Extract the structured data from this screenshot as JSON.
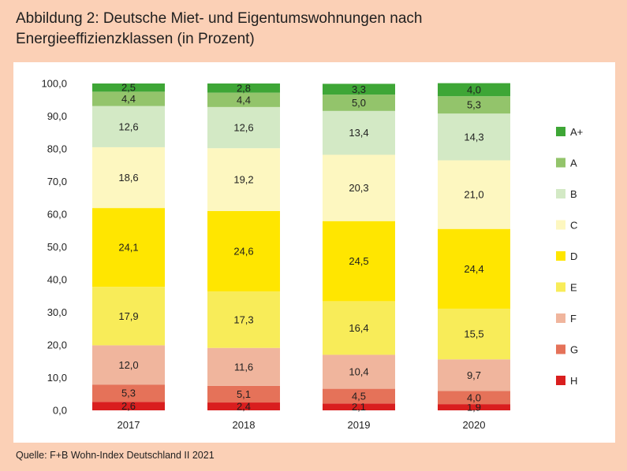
{
  "title": {
    "line1": "Abbildung 2: Deutsche Miet- und Eigentumswohnungen nach",
    "line2": "Energieeffizienzklassen (in Prozent)"
  },
  "source": "Quelle: F+B Wohn-Index Deutschland II 2021",
  "chart_data": {
    "type": "bar",
    "stacked": true,
    "categories": [
      "2017",
      "2018",
      "2019",
      "2020"
    ],
    "series": [
      {
        "name": "H",
        "color": "#d91e1e",
        "values": [
          2.6,
          2.4,
          2.1,
          1.9
        ]
      },
      {
        "name": "G",
        "color": "#e57259",
        "values": [
          5.3,
          5.1,
          4.5,
          4.0
        ]
      },
      {
        "name": "F",
        "color": "#f0b59d",
        "values": [
          12.0,
          11.6,
          10.4,
          9.7
        ]
      },
      {
        "name": "E",
        "color": "#f8ec59",
        "values": [
          17.9,
          17.3,
          16.4,
          15.5
        ]
      },
      {
        "name": "D",
        "color": "#ffe600",
        "values": [
          24.1,
          24.6,
          24.5,
          24.4
        ]
      },
      {
        "name": "C",
        "color": "#fdf7c0",
        "values": [
          18.6,
          19.2,
          20.3,
          21.0
        ]
      },
      {
        "name": "B",
        "color": "#d3e9c5",
        "values": [
          12.6,
          12.6,
          13.4,
          14.3
        ]
      },
      {
        "name": "A",
        "color": "#93c46b",
        "values": [
          4.4,
          4.4,
          5.0,
          5.3
        ]
      },
      {
        "name": "A+",
        "color": "#3ea636",
        "values": [
          2.5,
          2.8,
          3.3,
          4.0
        ]
      }
    ],
    "value_labels": [
      [
        "2,6",
        "2,4",
        "2,1",
        "1,9"
      ],
      [
        "5,3",
        "5,1",
        "4,5",
        "4,0"
      ],
      [
        "12,0",
        "11,6",
        "10,4",
        "9,7"
      ],
      [
        "17,9",
        "17,3",
        "16,4",
        "15,5"
      ],
      [
        "24,1",
        "24,6",
        "24,5",
        "24,4"
      ],
      [
        "18,6",
        "19,2",
        "20,3",
        "21,0"
      ],
      [
        "12,6",
        "12,6",
        "13,4",
        "14,3"
      ],
      [
        "4,4",
        "4,4",
        "5,0",
        "5,3"
      ],
      [
        "2,5",
        "2,8",
        "3,3",
        "4,0"
      ]
    ],
    "ylim": [
      0,
      100
    ],
    "y_ticks": [
      0,
      10,
      20,
      30,
      40,
      50,
      60,
      70,
      80,
      90,
      100
    ],
    "y_tick_labels": [
      "0,0",
      "10,0",
      "20,0",
      "30,0",
      "40,0",
      "50,0",
      "60,0",
      "70,0",
      "80,0",
      "90,0",
      "100,0"
    ],
    "legend_order": [
      "A+",
      "A",
      "B",
      "C",
      "D",
      "E",
      "F",
      "G",
      "H"
    ],
    "legend_position": "right",
    "grid": false
  }
}
